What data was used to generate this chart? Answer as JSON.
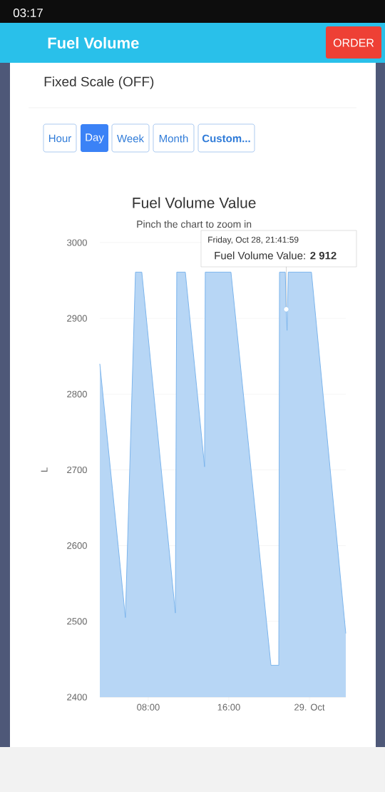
{
  "chart_data": {
    "type": "area",
    "title": "Fuel Volume Value",
    "subtitle": "Pinch the chart to zoom in",
    "ylabel": "L",
    "x": [
      3.19,
      5.73,
      6.73,
      7.36,
      10.69,
      10.83,
      11.68,
      13.59,
      13.66,
      16.21,
      20.18,
      20.96,
      21.03,
      21.6,
      21.7,
      21.78,
      21.9,
      24.2,
      27.61
    ],
    "values": [
      2840,
      2505,
      2961,
      2961,
      2511,
      2961,
      2961,
      2704,
      2961,
      2961,
      2442,
      2442,
      2961,
      2961,
      2912,
      2884,
      2961,
      2961,
      2484
    ],
    "color": "#7cb5ec",
    "xlim": [
      3.19,
      27.61
    ],
    "ylim": [
      2400,
      3000
    ],
    "xticks": [
      {
        "value": 8,
        "label": "08:00"
      },
      {
        "value": 16,
        "label": "16:00"
      },
      {
        "value": 24,
        "label": "29. Oct"
      }
    ],
    "yticks": [
      2400,
      2500,
      2600,
      2700,
      2800,
      2900,
      3000
    ],
    "grid": "y",
    "annotations": [
      "03:17",
      "Fuel Volume",
      "ORDER",
      "Fixed Scale (OFF)",
      "Hour",
      "Day",
      "Week",
      "Month",
      "Custom...",
      "Friday, Oct 28, 21:41:59",
      {
        "text": "Fuel Volume Value: **2 912**",
        "x": 21.7,
        "y": 2912
      }
    ]
  }
}
